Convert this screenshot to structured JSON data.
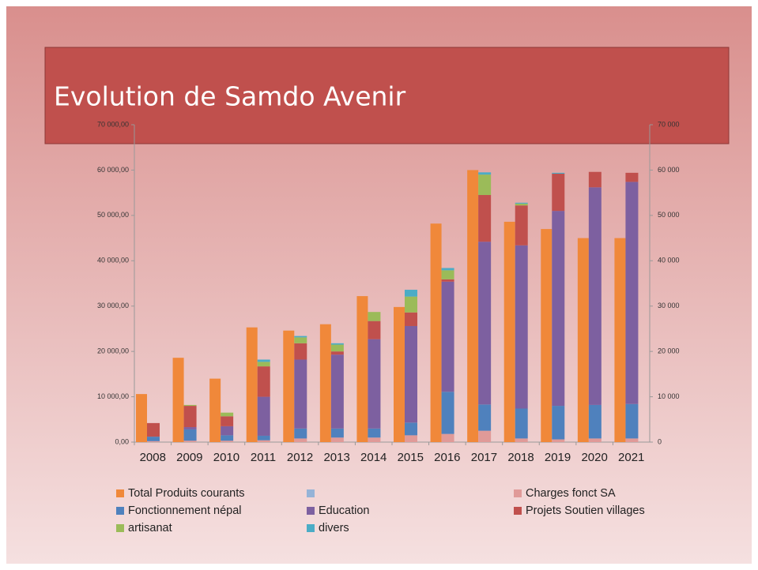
{
  "chart_data": {
    "type": "bar",
    "title": "Evolution de Samdo Avenir",
    "categories": [
      "2008",
      "2009",
      "2010",
      "2011",
      "2012",
      "2013",
      "2014",
      "2015",
      "2016",
      "2017",
      "2018",
      "2019",
      "2020",
      "2021"
    ],
    "ylim": [
      0,
      70000
    ],
    "yticks": [
      {
        "value": 0,
        "label": "0,00"
      },
      {
        "value": 10000,
        "label": "10 000,00"
      },
      {
        "value": 20000,
        "label": "20 000,00"
      },
      {
        "value": 30000,
        "label": "30 000,00"
      },
      {
        "value": 40000,
        "label": "40 000,00"
      },
      {
        "value": 50000,
        "label": "50 000,00"
      },
      {
        "value": 60000,
        "label": "60 000,00"
      },
      {
        "value": 70000,
        "label": "70 000,00"
      }
    ],
    "y2lim": [
      0,
      70000
    ],
    "y2ticks": [
      0,
      {
        "value": 10000,
        "label": "10 000"
      },
      {
        "value": 20000,
        "label": "20 000"
      },
      {
        "value": 30000,
        "label": "30 000"
      },
      {
        "value": 40000,
        "label": "40 000"
      },
      {
        "value": 50000,
        "label": "50 000"
      },
      {
        "value": 60000,
        "label": "60 000"
      },
      {
        "value": 70000,
        "label": "70 000"
      }
    ],
    "stacked": true,
    "series": [
      {
        "name": "Total Produits courants",
        "color": "#f0883a",
        "axis": "y",
        "values": [
          10600,
          18600,
          14000,
          25300,
          24600,
          26000,
          32200,
          29800,
          48200,
          60000,
          48600,
          47000,
          45000,
          45000
        ]
      },
      {
        "name": "Charges fonct SA",
        "color": "#e09a98",
        "axis": "y2",
        "values": [
          200,
          300,
          300,
          400,
          800,
          1000,
          1000,
          1500,
          1800,
          2500,
          800,
          600,
          800,
          800
        ]
      },
      {
        "name": "Fonctionnement népal",
        "color": "#4f81bd",
        "axis": "y2",
        "values": [
          1000,
          2500,
          1200,
          1000,
          2200,
          2000,
          2000,
          2800,
          9300,
          5800,
          6600,
          7400,
          7400,
          7600
        ]
      },
      {
        "name": "Education",
        "color": "#7d60a0",
        "axis": "y2",
        "values": [
          0,
          500,
          2000,
          8600,
          15200,
          16300,
          19700,
          21300,
          24300,
          35900,
          36000,
          43000,
          48000,
          49000
        ]
      },
      {
        "name": "Projets Soutien villages",
        "color": "#c0504d",
        "axis": "y2",
        "values": [
          3000,
          4700,
          2200,
          6700,
          3600,
          700,
          4000,
          3000,
          500,
          10300,
          8800,
          8200,
          3400,
          2000
        ]
      },
      {
        "name": "artisanat",
        "color": "#9bbb59",
        "axis": "y2",
        "values": [
          0,
          200,
          800,
          1000,
          1300,
          1500,
          2000,
          3500,
          2000,
          4500,
          400,
          0,
          0,
          0
        ]
      },
      {
        "name": "divers",
        "color": "#4bacc6",
        "axis": "y2",
        "values": [
          0,
          0,
          0,
          500,
          300,
          300,
          0,
          1500,
          500,
          500,
          200,
          200,
          0,
          0
        ]
      }
    ]
  }
}
